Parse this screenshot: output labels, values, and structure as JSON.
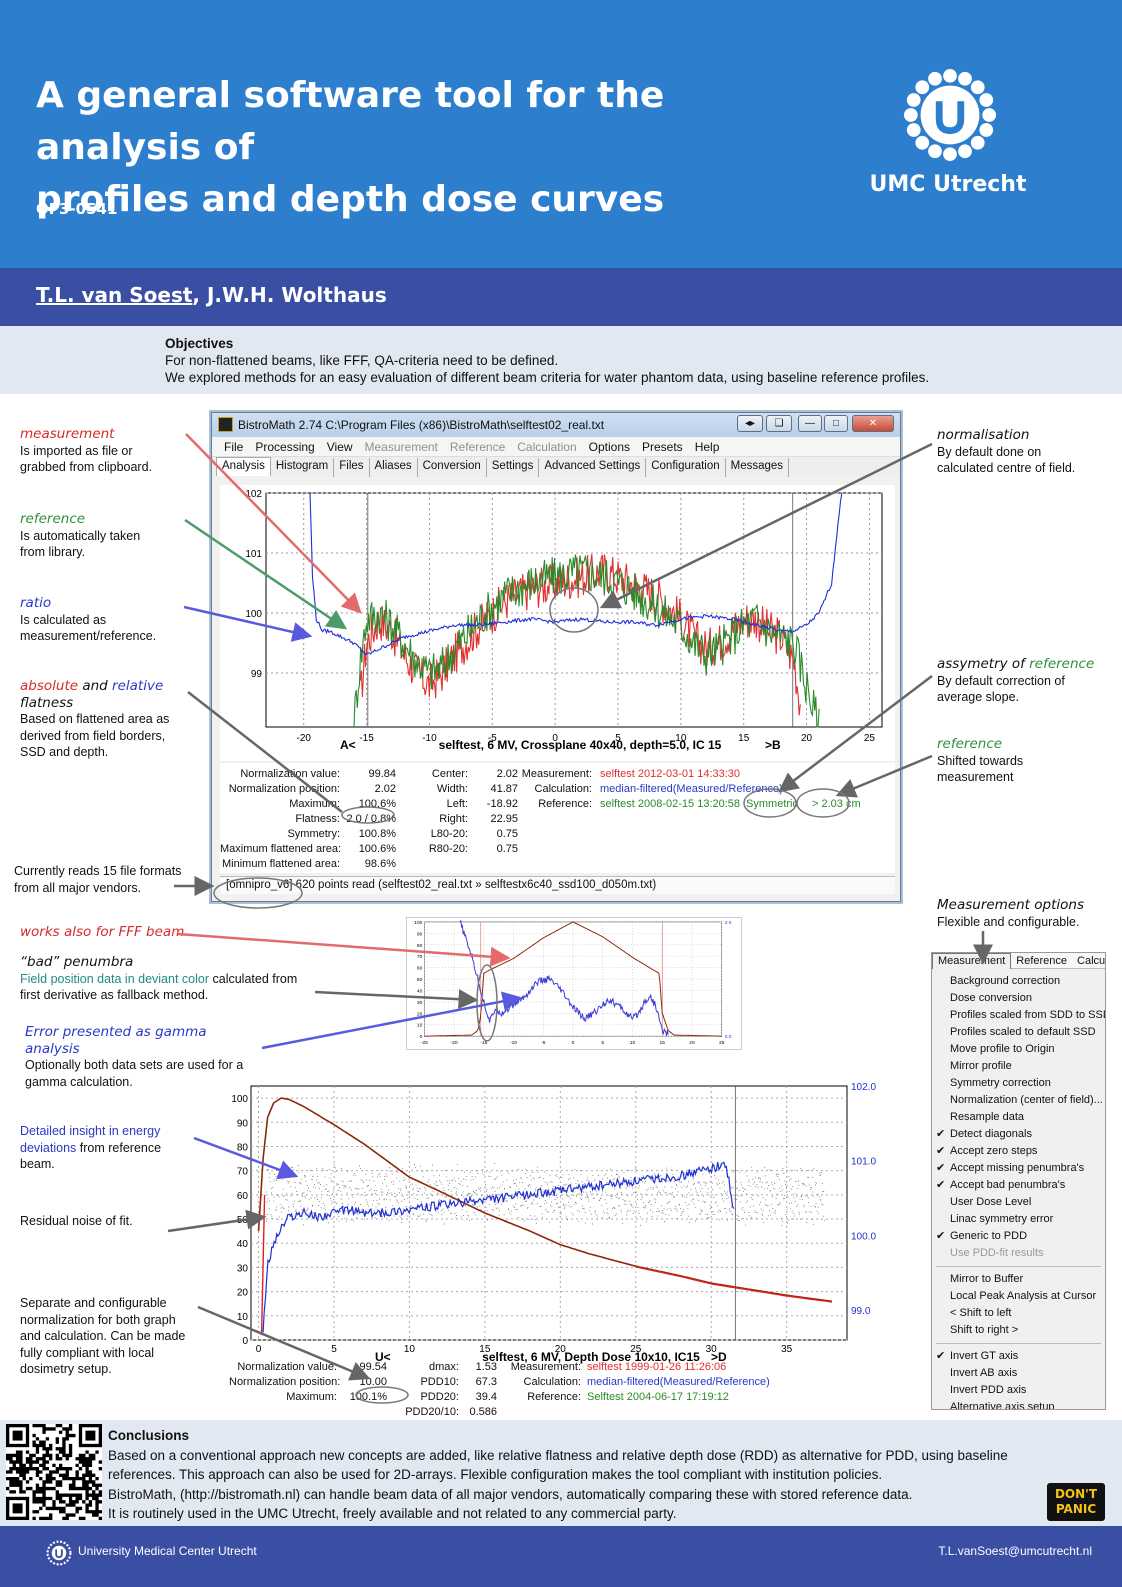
{
  "header": {
    "title_line1": "A general software tool for the analysis of",
    "title_line2": "profiles and depth dose curves",
    "code": "OF3-0541",
    "logo_text": "UMC Utrecht"
  },
  "authors": {
    "first": "T.L. van Soest",
    "rest": ", J.W.H. Wolthaus"
  },
  "objectives": {
    "heading": "Objectives",
    "line1": "For non-flattened beams, like FFF, QA-criteria need to be defined.",
    "line2": "We explored methods for an easy evaluation of different beam criteria for water phantom data, using baseline reference profiles."
  },
  "annotations": {
    "measurement_title": "measurement",
    "measurement_text": "Is imported as file or grabbed from clipboard.",
    "reference_title": "reference",
    "reference_text": "Is automatically taken from library.",
    "ratio_title": "ratio",
    "ratio_text": "Is calculated as measurement/reference.",
    "flat_absolute": "absolute",
    "flat_and": "and",
    "flat_relative": "relative",
    "flat_word": "flatness",
    "flat_text": "Based on flattened area as derived from field borders, SSD and depth.",
    "formats_text": "Currently reads 15 file formats from all major vendors.",
    "normalisation_title": "normalisation",
    "normalisation_text": "By default done on calculated centre of field.",
    "asym_title": "assymetry of",
    "asym_ref": "reference",
    "asym_text": "By default correction of average slope.",
    "reference2_title": "reference",
    "reference2_text": "Shifted towards measurement",
    "fff_text": "works also for FFF beam",
    "penumbra_title": "“bad” penumbra",
    "penumbra_colored": "Field position data in deviant color",
    "penumbra_text": "calculated from first derivative as fallback method.",
    "gamma_title": "Error presented as gamma analysis",
    "gamma_text": "Optionally both data sets are used for a gamma calculation.",
    "energy_colored": "Detailed insight in energy deviations",
    "energy_text": "from reference beam.",
    "residual_text": "Residual noise of fit.",
    "normconf_text": "Separate and configurable normalization for both graph and calculation. Can be made fully compliant with local dosimetry setup.",
    "measopt_title": "Measurement options",
    "measopt_text": "Flexible and configurable."
  },
  "app": {
    "title": "BistroMath 2.74   C:\\Program Files (x86)\\BistroMath\\selftest02_real.txt",
    "menus": [
      {
        "label": "File",
        "enabled": true
      },
      {
        "label": "Processing",
        "enabled": true
      },
      {
        "label": "View",
        "enabled": true
      },
      {
        "label": "Measurement",
        "enabled": false
      },
      {
        "label": "Reference",
        "enabled": false
      },
      {
        "label": "Calculation",
        "enabled": false
      },
      {
        "label": "Options",
        "enabled": true
      },
      {
        "label": "Presets",
        "enabled": true
      },
      {
        "label": "Help",
        "enabled": true
      }
    ],
    "tabs": [
      "Analysis",
      "Histogram",
      "Files",
      "Aliases",
      "Conversion",
      "Settings",
      "Advanced Settings",
      "Configuration",
      "Messages"
    ],
    "plot_left": "A<",
    "plot_caption": "selftest, 6 MV, Crossplane 40x40, depth=5.0, IC 15",
    "plot_right": ">B",
    "stats_col1": [
      {
        "k": "Normalization value:",
        "v": "99.84"
      },
      {
        "k": "Normalization position:",
        "v": "2.02"
      },
      {
        "k": "Maximum:",
        "v": "100.6%"
      },
      {
        "k": "Flatness:",
        "v": "2.0 / 0.8%"
      },
      {
        "k": "Symmetry:",
        "v": "100.8%"
      },
      {
        "k": "Maximum flattened area:",
        "v": "100.6%"
      },
      {
        "k": "Minimum flattened area:",
        "v": "98.6%"
      }
    ],
    "stats_col2": [
      {
        "k": "Center:",
        "v": "2.02"
      },
      {
        "k": "Width:",
        "v": "41.87"
      },
      {
        "k": "Left:",
        "v": "-18.92"
      },
      {
        "k": "Right:",
        "v": "22.95"
      },
      {
        "k": "L80-20:",
        "v": "0.75"
      },
      {
        "k": "R80-20:",
        "v": "0.75"
      }
    ],
    "meas_label": "Measurement:",
    "meas_value": "selftest 2012-03-01 14:33:30",
    "calc_label": "Calculation:",
    "calc_value": "median-filtered(Measured/Reference)",
    "ref_label": "Reference:",
    "ref_value": "selftest 2008-02-15 13:20:58",
    "ref_sym": "Symmetric",
    "ref_shift": "> 2.03 cm",
    "status": "[omnipro_v6] 620 points read (selftest02_real.txt » selftestx6c40_ssd100_d050m.txt)"
  },
  "pdd_stats": {
    "col1": [
      {
        "k": "Normalization value:",
        "v": "99.54"
      },
      {
        "k": "Normalization position:",
        "v": "10.00"
      },
      {
        "k": "Maximum:",
        "v": "100.1%"
      }
    ],
    "col2": [
      {
        "k": "dmax:",
        "v": "1.53"
      },
      {
        "k": "PDD10:",
        "v": "67.3"
      },
      {
        "k": "PDD20:",
        "v": "39.4"
      },
      {
        "k": "PDD20/10:",
        "v": "0.586"
      }
    ],
    "meas_label": "Measurement:",
    "meas_value": "selftest 1999-01-26 11:26:06",
    "calc_label": "Calculation:",
    "calc_value": "median-filtered(Measured/Reference)",
    "ref_label": "Reference:",
    "ref_value": "Selftest 2004-06-17 17:19:12"
  },
  "menu_panel": {
    "tabs": [
      "Measurement",
      "Reference",
      "Calcula"
    ],
    "groups": [
      [
        {
          "label": "Background correction",
          "checked": false,
          "enabled": true
        },
        {
          "label": "Dose conversion",
          "checked": false,
          "enabled": true
        },
        {
          "label": "Profiles scaled from SDD to SSD",
          "checked": false,
          "enabled": true
        },
        {
          "label": "Profiles scaled to default SSD",
          "checked": false,
          "enabled": true
        },
        {
          "label": "Move profile to Origin",
          "checked": false,
          "enabled": true
        },
        {
          "label": "Mirror profile",
          "checked": false,
          "enabled": true
        },
        {
          "label": "Symmetry correction",
          "checked": false,
          "enabled": true
        },
        {
          "label": "Normalization (center of field)...",
          "checked": false,
          "enabled": true
        },
        {
          "label": "Resample data",
          "checked": false,
          "enabled": true
        },
        {
          "label": "Detect diagonals",
          "checked": true,
          "enabled": true
        },
        {
          "label": "Accept zero steps",
          "checked": true,
          "enabled": true
        },
        {
          "label": "Accept missing penumbra's",
          "checked": true,
          "enabled": true
        },
        {
          "label": "Accept bad penumbra's",
          "checked": true,
          "enabled": true
        },
        {
          "label": "User Dose Level",
          "checked": false,
          "enabled": true
        },
        {
          "label": "Linac symmetry error",
          "checked": false,
          "enabled": true
        },
        {
          "label": "Generic to PDD",
          "checked": true,
          "enabled": true
        },
        {
          "label": "Use PDD-fit results",
          "checked": false,
          "enabled": false
        }
      ],
      [
        {
          "label": "Mirror to Buffer",
          "checked": false,
          "enabled": true
        },
        {
          "label": "Local Peak Analysis at Cursor",
          "checked": false,
          "enabled": true
        },
        {
          "label": "< Shift to left",
          "checked": false,
          "enabled": true
        },
        {
          "label": "Shift to right >",
          "checked": false,
          "enabled": true
        }
      ],
      [
        {
          "label": "Invert GT axis",
          "checked": true,
          "enabled": true
        },
        {
          "label": "Invert AB axis",
          "checked": false,
          "enabled": true
        },
        {
          "label": "Invert PDD axis",
          "checked": false,
          "enabled": true
        },
        {
          "label": "Alternative axis setup",
          "checked": false,
          "enabled": true
        }
      ]
    ]
  },
  "conclusions": {
    "heading": "Conclusions",
    "line1": "Based on a conventional approach new concepts are added, like relative flatness and relative depth dose (RDD) as alternative for PDD, using baseline",
    "line2": "references. This approach can also be used for 2D-arrays. Flexible configuration makes the tool compliant with institution policies.",
    "line3": "BistroMath, (http://bistromath.nl)  can handle beam data of all major vendors, automatically comparing these with stored reference data.",
    "line4": "It is routinely used in the UMC Utrecht, freely available and not related to any commercial party.",
    "badge_line1": "DON'T",
    "badge_line2": "PANIC"
  },
  "footer": {
    "institution": "University Medical Center Utrecht",
    "email": "T.L.vanSoest@umcutrecht.nl"
  },
  "colors": {
    "header": "#2d7fce",
    "band": "#3a4fa4",
    "measurement": "#e03030",
    "reference": "#2a8a2a",
    "ratio": "#1f2fd6",
    "pdd": "#8b2a0a"
  },
  "chart_data": [
    {
      "type": "line",
      "xlim": [
        -23,
        26
      ],
      "ylim": [
        98.1,
        102
      ],
      "x_ticks": [
        -20,
        -15,
        -10,
        -5,
        0,
        5,
        10,
        15,
        20,
        25
      ],
      "y_ticks": [
        99,
        100,
        101,
        102
      ],
      "grid": true,
      "series": [
        {
          "id": "measurement",
          "color": "#e03030",
          "x": [
            -15.5,
            -15,
            -14,
            -13,
            -12,
            -11,
            -10,
            -9,
            -8,
            -6,
            -4,
            -2,
            0,
            2,
            4,
            6,
            8,
            10,
            11,
            12,
            13,
            14,
            15,
            16,
            17,
            18,
            19,
            19.5
          ],
          "y": [
            98.6,
            99.5,
            99.9,
            99.7,
            99.3,
            99.0,
            98.8,
            99.0,
            99.3,
            99.8,
            100.2,
            100.4,
            100.5,
            100.6,
            100.7,
            100.5,
            100.3,
            99.9,
            99.6,
            99.4,
            99.5,
            99.7,
            99.9,
            99.9,
            99.7,
            99.6,
            99.2,
            98.5
          ]
        },
        {
          "id": "reference",
          "color": "#2a8a2a",
          "x": [
            -16,
            -15.5,
            -15,
            -14,
            -13,
            -12,
            -11,
            -10,
            -9,
            -8,
            -6,
            -4,
            -2,
            0,
            2,
            4,
            6,
            8,
            10,
            11,
            12,
            13,
            14,
            15,
            16,
            17,
            18,
            19,
            20,
            21
          ],
          "y": [
            98.2,
            99.2,
            99.9,
            100.0,
            99.8,
            99.5,
            99.2,
            99.0,
            99.1,
            99.4,
            99.9,
            100.3,
            100.5,
            100.6,
            100.7,
            100.6,
            100.4,
            100.1,
            99.8,
            99.5,
            99.3,
            99.4,
            99.6,
            99.8,
            99.9,
            99.7,
            99.6,
            99.5,
            98.8,
            98.1
          ]
        },
        {
          "id": "ratio",
          "color": "#1f2fd6",
          "x": [
            -19.5,
            -19.3,
            -19,
            -18.5,
            -18,
            -17,
            -16,
            -15,
            -14,
            -12,
            -10,
            -8,
            -6,
            -4,
            -2,
            0,
            2,
            4,
            6,
            8,
            10,
            12,
            14,
            16,
            18,
            19,
            20,
            21,
            22,
            22.5,
            22.8
          ],
          "y": [
            102,
            100.6,
            99.9,
            99.7,
            99.7,
            99.6,
            99.5,
            99.3,
            99.4,
            99.6,
            99.7,
            99.8,
            99.8,
            99.85,
            99.9,
            99.85,
            99.9,
            99.85,
            99.85,
            99.8,
            99.9,
            99.95,
            99.9,
            99.8,
            99.7,
            99.7,
            99.8,
            100.0,
            100.5,
            101.5,
            102
          ]
        }
      ]
    },
    {
      "type": "line",
      "xlim": [
        -25,
        25
      ],
      "ylim": [
        0,
        100
      ],
      "y2lim": [
        0,
        2
      ],
      "x_ticks": [
        -25,
        -20,
        -15,
        -10,
        -5,
        0,
        5,
        10,
        15,
        20,
        25
      ],
      "y_ticks": [
        0,
        10,
        20,
        30,
        40,
        50,
        60,
        70,
        80,
        90,
        100
      ],
      "y2_ticks": [
        0.0,
        2.0
      ],
      "grid": true,
      "series": [
        {
          "id": "fff-profile",
          "color": "#8b2a0a",
          "x": [
            -25,
            -17,
            -16,
            -15.5,
            -15,
            -14,
            -10,
            -5,
            0,
            5,
            10,
            13.5,
            14.5,
            15,
            16,
            17,
            25
          ],
          "y": [
            0,
            1,
            5,
            18,
            55,
            58,
            68,
            86,
            100,
            87,
            69,
            58,
            55,
            20,
            5,
            1,
            0
          ]
        },
        {
          "id": "gamma",
          "color": "#3a3ad6",
          "x": [
            -19,
            -17,
            -15,
            -14,
            -13,
            -12,
            -10,
            -8,
            -6,
            -4,
            -2,
            0,
            2,
            4,
            6,
            8,
            10,
            11,
            12,
            13,
            14,
            15,
            16
          ],
          "y": [
            2,
            1.4,
            0.6,
            0.25,
            0.5,
            0.4,
            0.55,
            0.7,
            0.95,
            1.0,
            0.8,
            0.5,
            0.3,
            0.45,
            0.65,
            0.5,
            0.3,
            0.4,
            0.6,
            0.7,
            0.5,
            0.1,
            0.05
          ]
        }
      ]
    },
    {
      "type": "line",
      "x_left": "U<",
      "caption": "selftest, 6 MV, Depth Dose 10x10, IC15",
      "x_right": ">D",
      "xlim": [
        -0.5,
        39
      ],
      "ylim": [
        0,
        105
      ],
      "y2lim": [
        98.6,
        102.0
      ],
      "x_ticks": [
        0,
        5,
        10,
        15,
        20,
        25,
        30,
        35
      ],
      "y_ticks": [
        0,
        10,
        20,
        30,
        40,
        50,
        60,
        70,
        80,
        90,
        100
      ],
      "y2_ticks": [
        99.0,
        100.0,
        101.0,
        102.0
      ],
      "grid": true,
      "series": [
        {
          "id": "pdd",
          "color": "#8b2a0a",
          "x": [
            0,
            0.3,
            0.6,
            1.0,
            1.5,
            2,
            3,
            5,
            7,
            10,
            12,
            15,
            18,
            20,
            22,
            25,
            28,
            30,
            32,
            35,
            38
          ],
          "y": [
            45,
            75,
            92,
            98,
            100,
            99.5,
            96.5,
            89,
            81,
            67.3,
            61.5,
            52.5,
            45,
            39.4,
            35.5,
            30.5,
            26.5,
            23.5,
            21.5,
            18.5,
            16
          ]
        },
        {
          "id": "ratio",
          "color": "#2030d0",
          "axis": "right",
          "x": [
            0.3,
            0.6,
            1,
            1.5,
            2,
            3,
            4,
            5,
            6,
            7,
            8,
            10,
            12,
            14,
            16,
            18,
            20,
            22,
            24,
            26,
            28,
            30,
            31,
            31.5
          ],
          "y": [
            98.7,
            99.6,
            99.9,
            100.1,
            100.25,
            100.3,
            100.25,
            100.3,
            100.35,
            100.3,
            100.3,
            100.35,
            100.4,
            100.45,
            100.5,
            100.55,
            100.6,
            100.65,
            100.7,
            100.75,
            100.8,
            100.9,
            100.95,
            100.3
          ]
        }
      ]
    }
  ]
}
